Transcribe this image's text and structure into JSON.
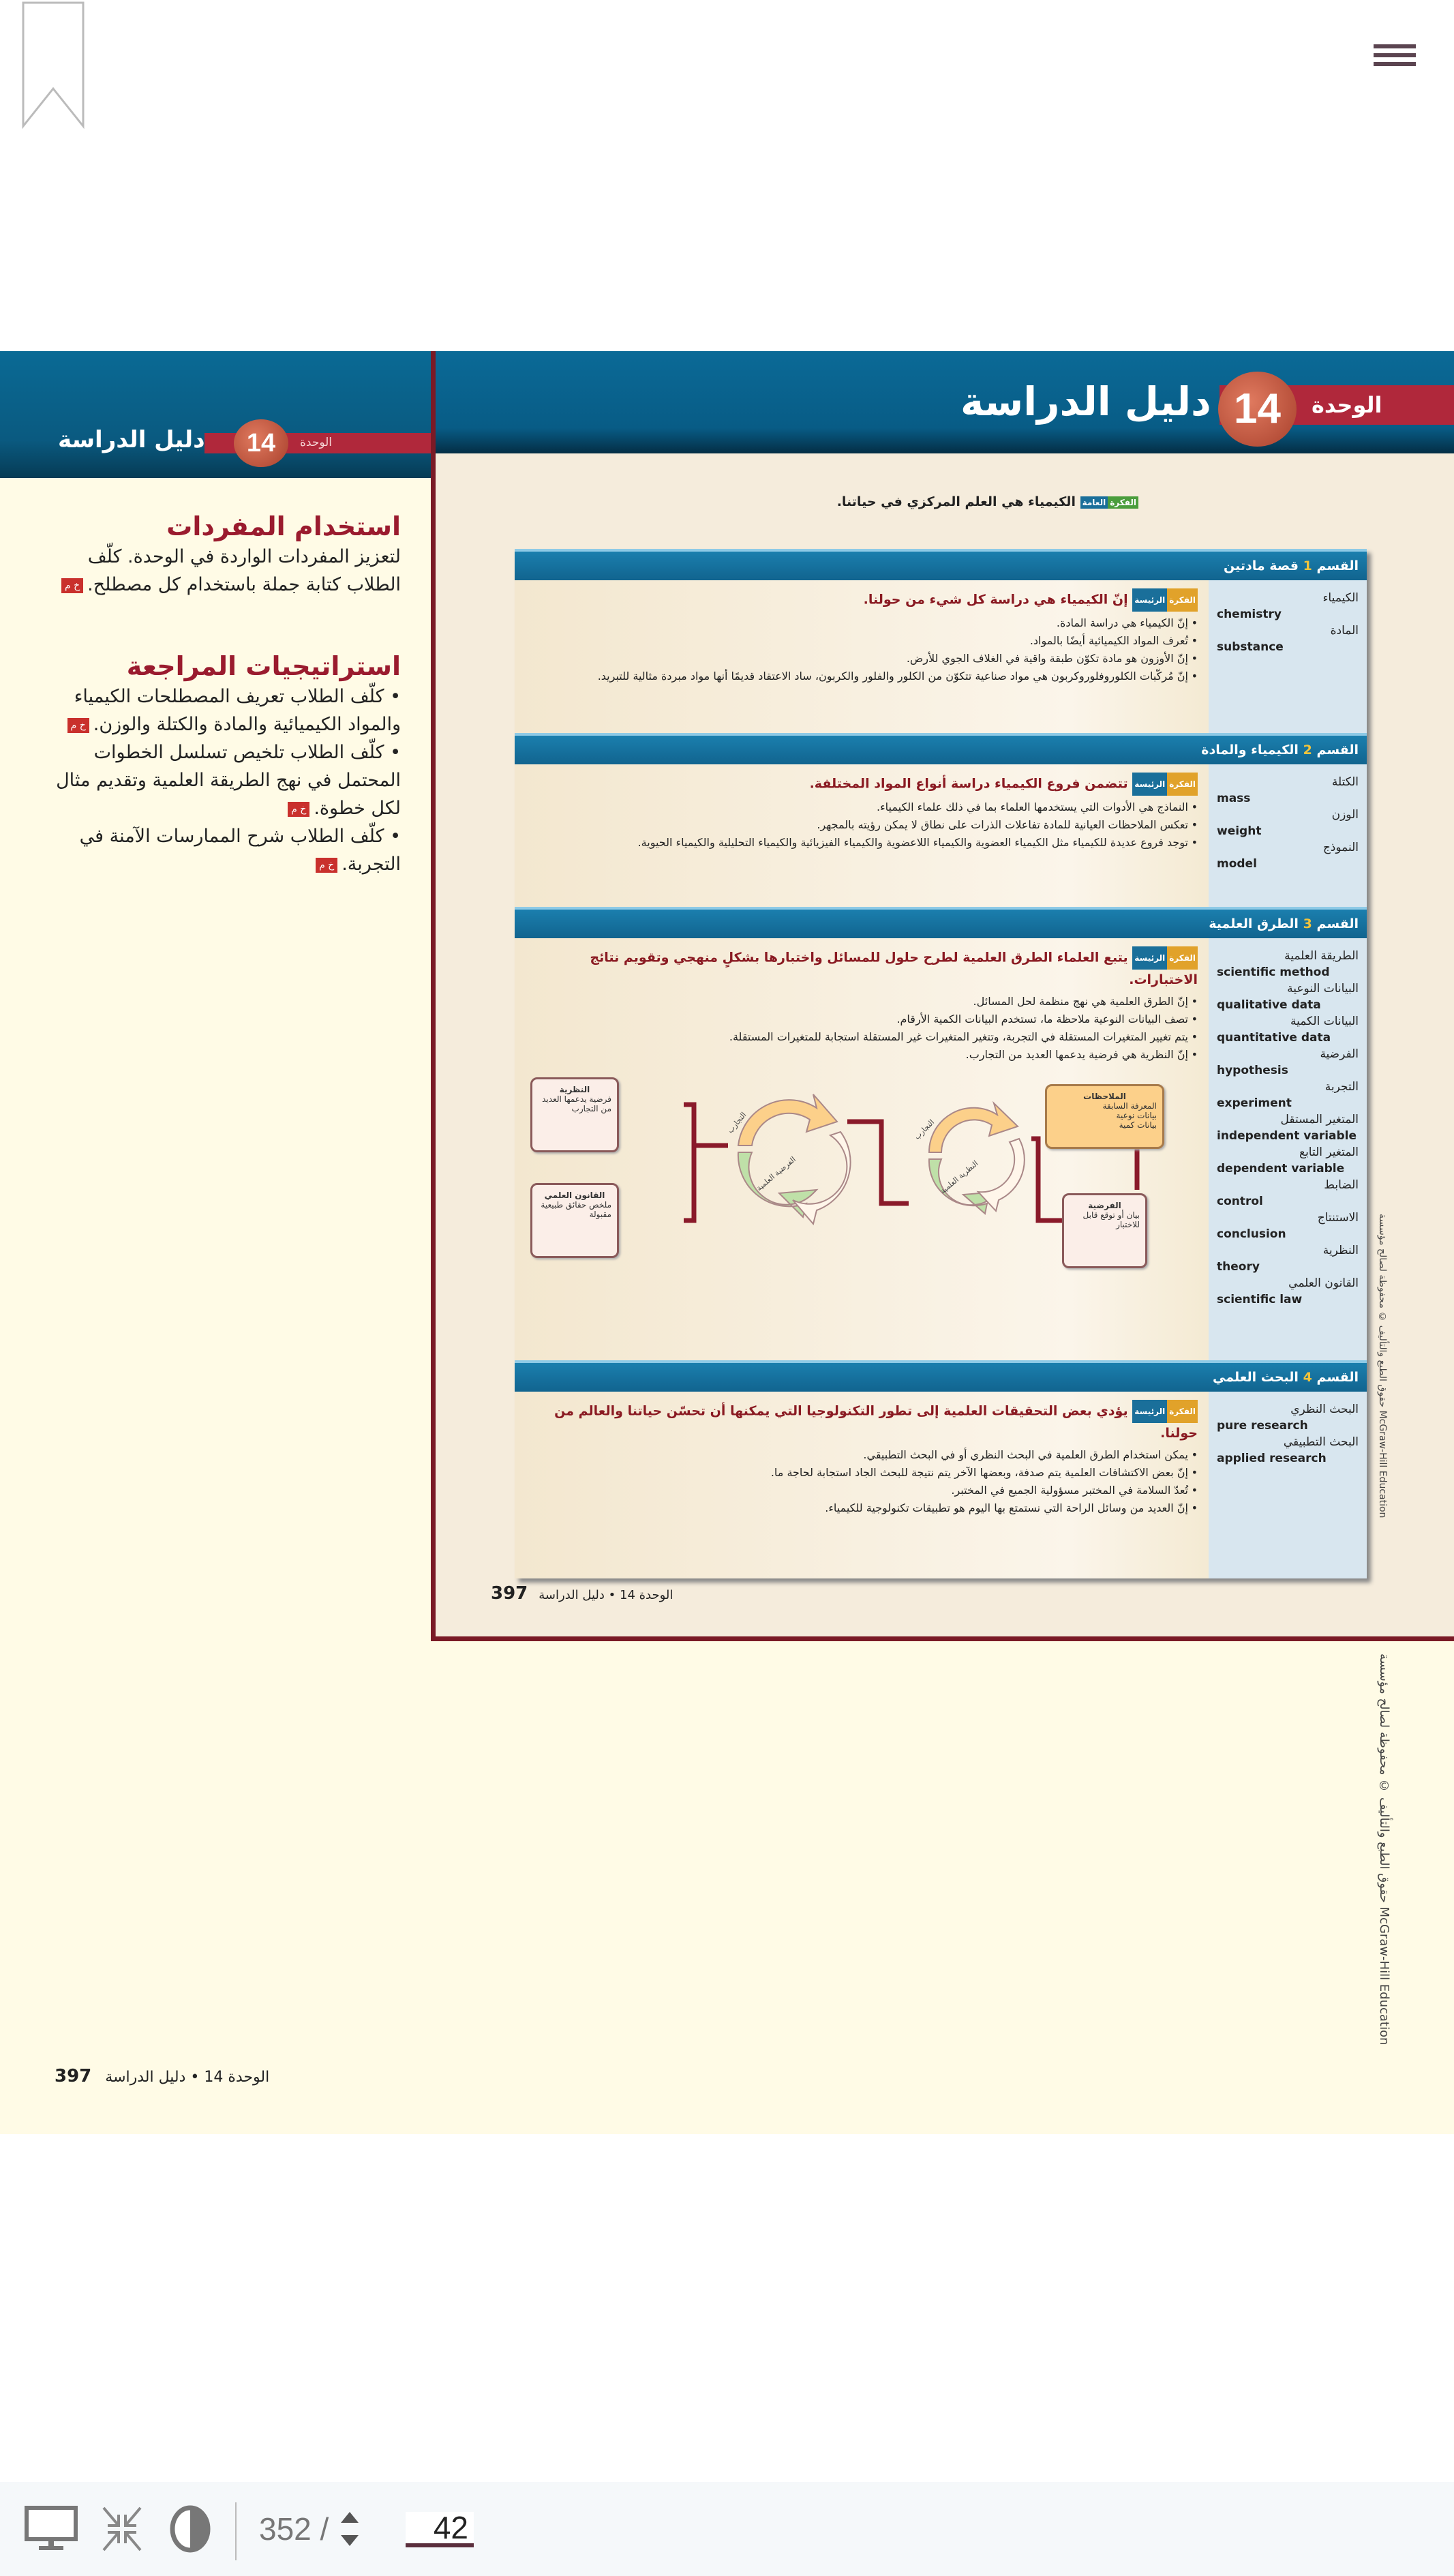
{
  "viewer": {
    "icons": [
      "bookmark-icon",
      "menu-icon",
      "presentation-icon",
      "collapse-icon",
      "contrast-icon"
    ],
    "page_total": "352 /",
    "page_current": "42"
  },
  "left_panel": {
    "unit_label": "الوحدة",
    "unit_number": "14",
    "title": "دليل الدراسة",
    "vocab_heading": "استخدام المفردات",
    "vocab_text": "لتعزيز المفردات الواردة في الوحدة. كلّف الطلاب كتابة جملة باستخدام كل مصطلح.",
    "tag": "خ م",
    "review_heading": "استراتيجيات المراجعة",
    "review_items": [
      "كلّف الطلاب تعريف المصطلحات الكيمياء والمواد الكيميائية والمادة والكتلة والوزن.",
      "كلّف الطلاب تلخيص تسلسل الخطوات المحتمل في نهج الطريقة العلمية وتقديم مثال لكل خطوة.",
      "كلّف الطلاب شرح الممارسات الآمنة في التجربة."
    ],
    "footer_text": "الوحدة 14 • دليل الدراسة",
    "footer_page": "397"
  },
  "page": {
    "unit_label": "الوحدة",
    "unit_number": "14",
    "title": "دليل الدراسة",
    "big_idea_badge": [
      "الفكرة",
      "العامة"
    ],
    "big_idea": "الكيمياء هي العلم المركزي في حياتنا.",
    "main_idea_badge": [
      "الفكرة",
      "الرئيسة"
    ],
    "sections": [
      {
        "label": "القسم",
        "num": "1",
        "title": "قصة مادتين",
        "vocab": [
          {
            "ar": "الكيمياء",
            "en": "chemistry"
          },
          {
            "ar": "المادة",
            "en": "substance"
          }
        ],
        "main_idea": "إنّ الكيمياء هي دراسة كل شيء من حولنا.",
        "points": [
          "إنّ الكيمياء هي دراسة المادة.",
          "تُعرف المواد الكيميائية أيضًا بالمواد.",
          "إنّ الأوزون هو مادة تكوّن طبقة واقية في الغلاف الجوي للأرض.",
          "إنّ مُركّبات الكلوروفلوروكربون هي مواد صناعية تتكوّن من الكلور والفلور والكربون، ساد الاعتقاد قديمًا أنها مواد مبردة مثالية للتبريد."
        ]
      },
      {
        "label": "القسم",
        "num": "2",
        "title": "الكيمياء والمادة",
        "vocab": [
          {
            "ar": "الكتلة",
            "en": "mass"
          },
          {
            "ar": "الوزن",
            "en": "weight"
          },
          {
            "ar": "النموذج",
            "en": "model"
          }
        ],
        "main_idea": "تتضمن فروع الكيمياء دراسة أنواع المواد المختلفة.",
        "points": [
          "النماذج هي الأدوات التي يستخدمها العلماء بما في ذلك علماء الكيمياء.",
          "تعكس الملاحظات العيانية للمادة تفاعلات الذرات على نطاق لا يمكن رؤيته بالمجهر.",
          "توجد فروع عديدة للكيمياء مثل الكيمياء العضوية والكيمياء اللاعضوية والكيمياء الفيزيائية والكيمياء التحليلية والكيمياء الحيوية."
        ]
      },
      {
        "label": "القسم",
        "num": "3",
        "title": "الطرق العلمية",
        "vocab": [
          {
            "ar": "الطريقة العلمية",
            "en": "scientific method"
          },
          {
            "ar": "البيانات النوعية",
            "en": "qualitative data"
          },
          {
            "ar": "البيانات الكمية",
            "en": "quantitative data"
          },
          {
            "ar": "الفرضية",
            "en": "hypothesis"
          },
          {
            "ar": "التجربة",
            "en": "experiment"
          },
          {
            "ar": "المتغير المستقل",
            "en": "independent variable"
          },
          {
            "ar": "المتغير التابع",
            "en": "dependent variable"
          },
          {
            "ar": "الضابط",
            "en": "control"
          },
          {
            "ar": "الاستنتاج",
            "en": "conclusion"
          },
          {
            "ar": "النظرية",
            "en": "theory"
          },
          {
            "ar": "القانون العلمي",
            "en": "scientific law"
          }
        ],
        "main_idea": "يتبع العلماء الطرق العلمية لطرح حلول للمسائل واختبارها بشكلٍ منهجي وتقويم نتائج الاختبارات.",
        "points": [
          "إنّ الطرق العلمية هي نهج منظمة لحل المسائل.",
          "تصف البيانات النوعية ملاحظة ما، تستخدم البيانات الكمية الأرقام.",
          "يتم تغيير المتغيرات المستقلة في التجربة، وتتغير المتغيرات غير المستقلة استجابة للمتغيرات المستقلة.",
          "إنّ النظرية هي فرضية يدعمها العديد من التجارب."
        ],
        "diagram": {
          "observations": {
            "title": "الملاحظات",
            "items": [
              "المعرفة السابقة",
              "بيانات نوعية",
              "بيانات كمية"
            ]
          },
          "hypothesis": {
            "title": "الفرضية",
            "items": [
              "بيان أو توقع قابل للاختبار"
            ]
          },
          "theory": {
            "title": "النظرية",
            "items": [
              "فرضية يدعمها العديد من التجارب"
            ]
          },
          "law": {
            "title": "القانون العلمي",
            "items": [
              "ملخص حقائق طبيعية مقبولة"
            ]
          },
          "cycle_labels": [
            "التجارب",
            "الفرضية العلمية",
            "التجارب",
            "النظرية العلمية"
          ]
        }
      },
      {
        "label": "القسم",
        "num": "4",
        "title": "البحث العلمي",
        "vocab": [
          {
            "ar": "البحث النظري",
            "en": "pure research"
          },
          {
            "ar": "البحث التطبيقي",
            "en": "applied research"
          }
        ],
        "main_idea": "يؤدي بعض التحقيقات العلمية إلى تطور التكنولوجيا التي يمكنها أن تحسّن حياتنا والعالم من حولنا.",
        "points": [
          "يمكن استخدام الطرق العلمية في البحث النظري أو في البحث التطبيقي.",
          "إنّ بعض الاكتشافات العلمية يتم صدفة، وبعضها الآخر يتم نتيجة للبحث الجاد استجابة لحاجة ما.",
          "تُعدّ السلامة في المختبر مسؤولية الجميع في المختبر.",
          "إنّ العديد من وسائل الراحة التي نستمتع بها اليوم هو تطبيقات تكنولوجية للكيمياء."
        ]
      }
    ],
    "footer_text": "الوحدة 14 • دليل الدراسة",
    "footer_page": "397",
    "copyright": "حقوق الطبع والتأليف © محفوظة لصالح مؤسسة McGraw-Hill Education"
  },
  "colors": {
    "header_blue": "#0a6a95",
    "accent_red": "#b0283b",
    "border_red": "#7a1a26",
    "cream": "#fffbe6",
    "beige": "#f5ecdc"
  }
}
